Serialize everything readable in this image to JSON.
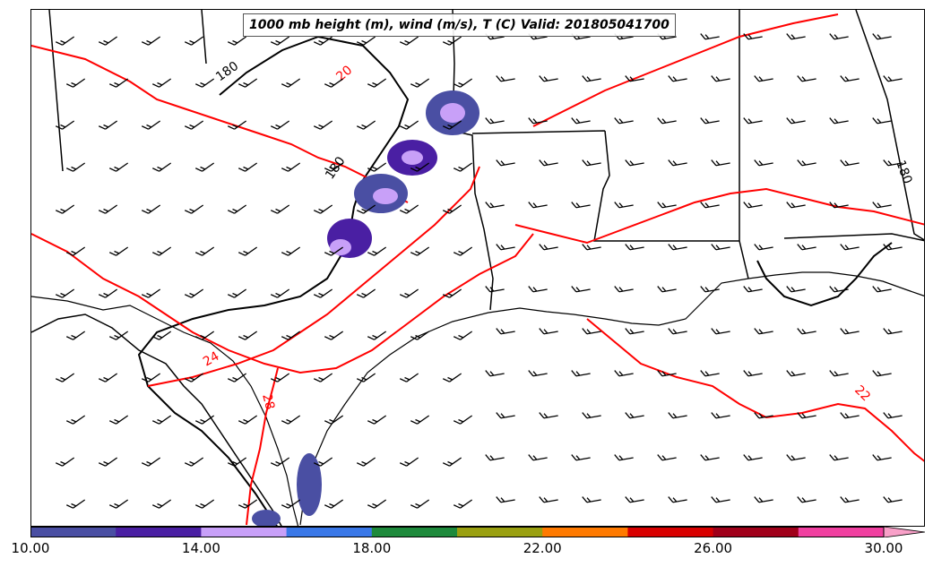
{
  "title": "1000 mb height (m), wind (m/s), T (C) Valid: 201805041700",
  "contour_labels": {
    "height": [
      "180",
      "180",
      "180"
    ],
    "temperature": [
      "20",
      "24",
      "28",
      "22"
    ]
  },
  "colorbar": {
    "levels": [
      10,
      12,
      14,
      16,
      18,
      20,
      22,
      24,
      26,
      28,
      30
    ],
    "colors": [
      "#4a4fa3",
      "#4a1fa3",
      "#c8a0f8",
      "#3a78e8",
      "#1e8a3c",
      "#9aa010",
      "#ff7a00",
      "#d80000",
      "#a0001a",
      "#f040a0",
      "#f8a0c8"
    ],
    "tick_labels": [
      "10.00",
      "14.00",
      "18.00",
      "22.00",
      "26.00",
      "30.00"
    ],
    "extend": "max"
  },
  "colors": {
    "temperature_contour": "#ff0000",
    "height_contour": "#000000",
    "boundaries": "#000000"
  }
}
